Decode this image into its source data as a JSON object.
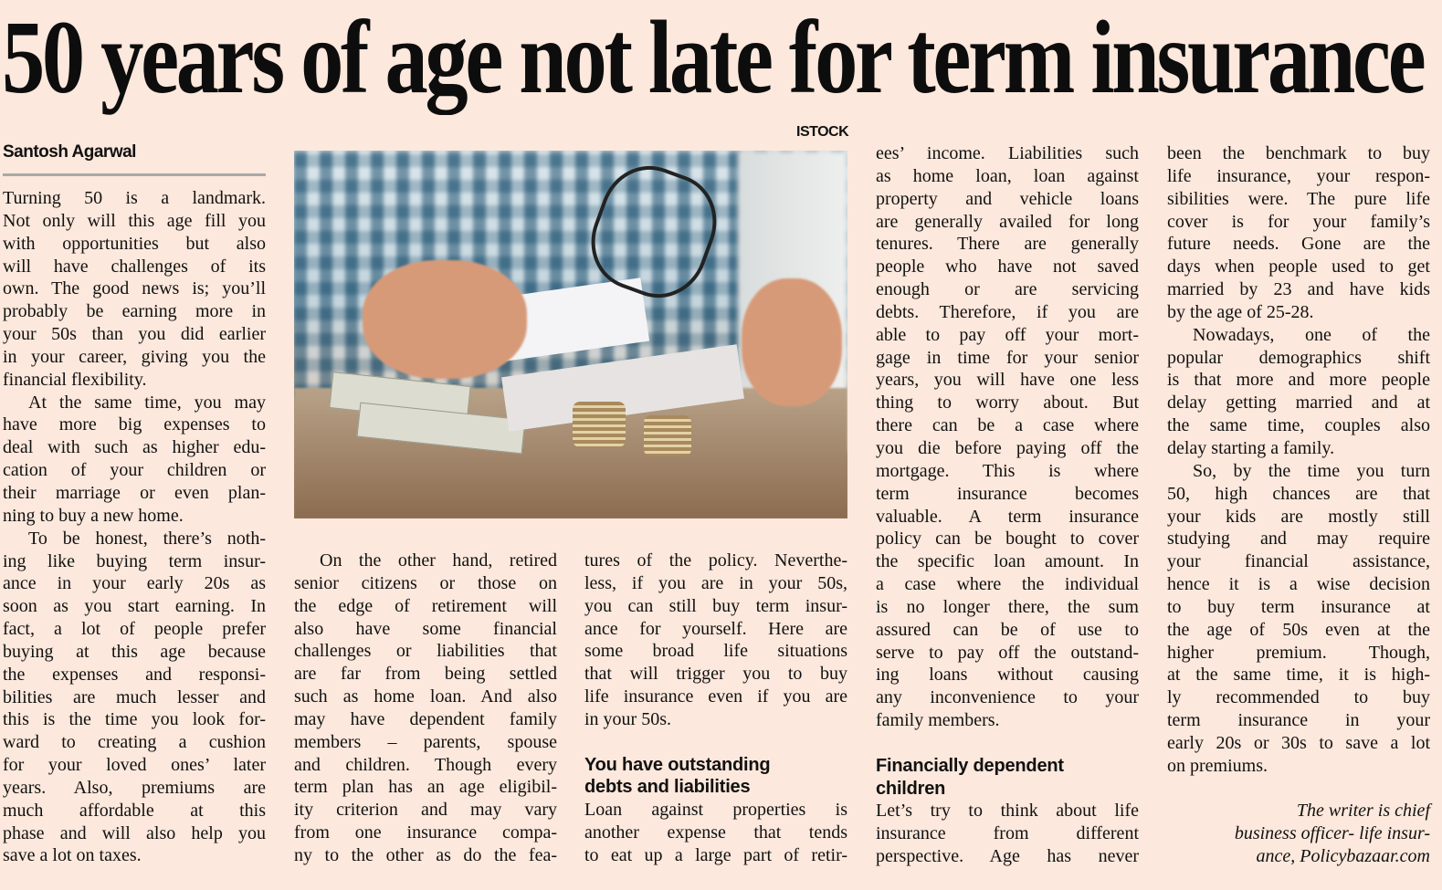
{
  "headline": "50 years of age not late for term insurance",
  "photo_credit": "ISTOCK",
  "byline": "Santosh Agarwal",
  "columns": [
    {
      "items": [
        {
          "type": "p",
          "lines": [
            "Turning 50 is a landmark.",
            "Not only will this age fill you",
            "with opportunities but also",
            "will have challenges of its",
            "own. The good news is; you’ll",
            "probably be earning more in",
            "your 50s than you did earlier",
            "in your career, giving you the",
            "financial flexibility."
          ]
        },
        {
          "type": "p",
          "indent": true,
          "lines": [
            "At the same time, you may",
            "have more big expenses to",
            "deal with such as higher edu-",
            "cation of your children or",
            "their marriage or even plan-",
            "ning to buy a new home."
          ]
        },
        {
          "type": "p",
          "indent": true,
          "lines": [
            "To be honest, there’s noth-",
            "ing like buying term insur-",
            "ance in your early 20s as",
            "soon as you start earning. In",
            "fact, a lot of people prefer",
            "buying at this age because",
            "the expenses and responsi-",
            "bilities are much lesser and",
            "this is the time you look for-",
            "ward to creating a cushion",
            "for your loved ones’ later",
            "years. Also, premiums are",
            "much affordable at this",
            "phase and will also help you",
            "save a lot on taxes."
          ]
        }
      ]
    },
    {
      "items": [
        {
          "type": "p",
          "indent": true,
          "open": true,
          "lines": [
            "On the other hand, retired",
            "senior citizens or those on",
            "the edge of retirement will",
            "also have some financial",
            "challenges or liabilities that",
            "are far from being settled",
            "such as home loan. And also",
            "may have dependent family",
            "members – parents, spouse",
            "and children. Though every",
            "term plan has an age eligibil-",
            "ity criterion and may vary",
            "from one insurance compa-",
            "ny to the other as do the fea-"
          ]
        }
      ]
    },
    {
      "items": [
        {
          "type": "p",
          "lines": [
            "tures of the policy. Neverthe-",
            "less, if you are in your 50s,",
            "you can still buy term insur-",
            "ance for yourself. Here are",
            "some broad life situations",
            "that will trigger you to buy",
            "life insurance even if you are",
            "in your 50s."
          ]
        },
        {
          "type": "gap"
        },
        {
          "type": "h",
          "lines": [
            "You have outstanding",
            "debts and liabilities"
          ]
        },
        {
          "type": "p",
          "open": true,
          "lines": [
            "Loan against properties is",
            "another expense that tends",
            "to eat up a large part of retir-"
          ]
        }
      ]
    },
    {
      "items": [
        {
          "type": "p",
          "lines": [
            "ees’ income. Liabilities such",
            "as home loan, loan against",
            "property and vehicle loans",
            "are generally availed for long",
            "tenures. There are generally",
            "people who have not saved",
            "enough or are servicing",
            "debts. Therefore, if you are",
            "able to pay off your mort-",
            "gage in time for your senior",
            "years, you will have one less",
            "thing to worry about. But",
            "there can be a case where",
            "you die before paying off the",
            "mortgage. This is where",
            "term insurance becomes",
            "valuable. A term insurance",
            "policy can be bought to cover",
            "the specific loan amount. In",
            "a case where the individual",
            "is no longer there, the sum",
            "assured can be of use to",
            "serve to pay off the outstand-",
            "ing loans without causing",
            "any inconvenience to your",
            "family members."
          ]
        },
        {
          "type": "gap"
        },
        {
          "type": "h",
          "lines": [
            "Financially dependent",
            "children"
          ]
        },
        {
          "type": "p",
          "open": true,
          "lines": [
            "Let’s try to think about life",
            "insurance from different",
            "perspective. Age has never"
          ]
        }
      ]
    },
    {
      "items": [
        {
          "type": "p",
          "lines": [
            "been the benchmark to buy",
            "life insurance, your respon-",
            "sibilities were. The pure life",
            "cover is for your family’s",
            "future needs. Gone are the",
            "days when people used to get",
            "married by 23 and have kids",
            "by the age of 25-28."
          ]
        },
        {
          "type": "p",
          "indent": true,
          "lines": [
            "Nowadays, one of the",
            "popular demographics shift",
            "is that more and more people",
            "delay getting married and at",
            "the same time, couples also",
            "delay starting a family."
          ]
        },
        {
          "type": "p",
          "indent": true,
          "lines": [
            "So, by the time you turn",
            "50, high chances are that",
            "your kids are mostly still",
            "studying and may require",
            "your financial assistance,",
            "hence it is a wise decision",
            "to buy term insurance at",
            "the age of 50s even at the",
            "higher premium. Though,",
            "at the same time, it is high-",
            "ly recommended to buy",
            "term insurance in your",
            "early 20s or 30s to save a lot",
            "on premiums."
          ]
        },
        {
          "type": "gap"
        },
        {
          "type": "note",
          "lines": [
            "The writer is chief",
            "business officer- life insur-",
            "ance, Policybazaar.com"
          ]
        }
      ]
    }
  ]
}
